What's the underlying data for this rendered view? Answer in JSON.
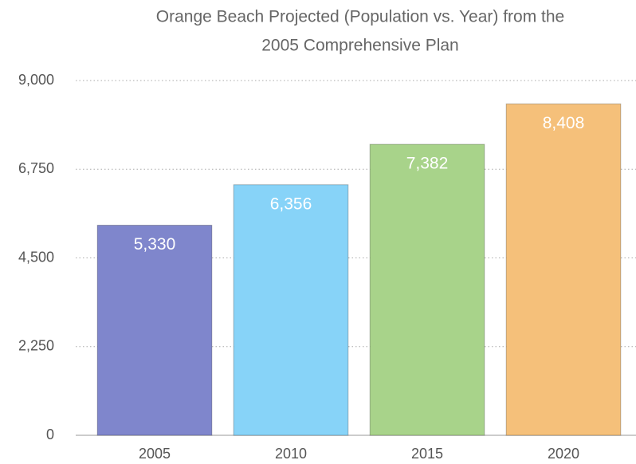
{
  "chart_data": {
    "type": "bar",
    "title": [
      "Orange Beach Projected (Population vs. Year) from the",
      "2005 Comprehensive Plan"
    ],
    "categories": [
      "2005",
      "2010",
      "2015",
      "2020"
    ],
    "values": [
      5330,
      6356,
      7382,
      8408
    ],
    "value_labels": [
      "5,330",
      "6,356",
      "7,382",
      "8,408"
    ],
    "colors": [
      "#7f86cc",
      "#87d3f8",
      "#a8d38a",
      "#f5c07a"
    ],
    "ylim": [
      0,
      9000
    ],
    "yticks": [
      0,
      {
        "value": 2250,
        "label": "2,250"
      },
      {
        "value": 4500,
        "label": "4,500"
      },
      {
        "value": 6750,
        "label": "6,750"
      },
      {
        "value": 9000,
        "label": "9,000"
      }
    ],
    "grid": true
  }
}
